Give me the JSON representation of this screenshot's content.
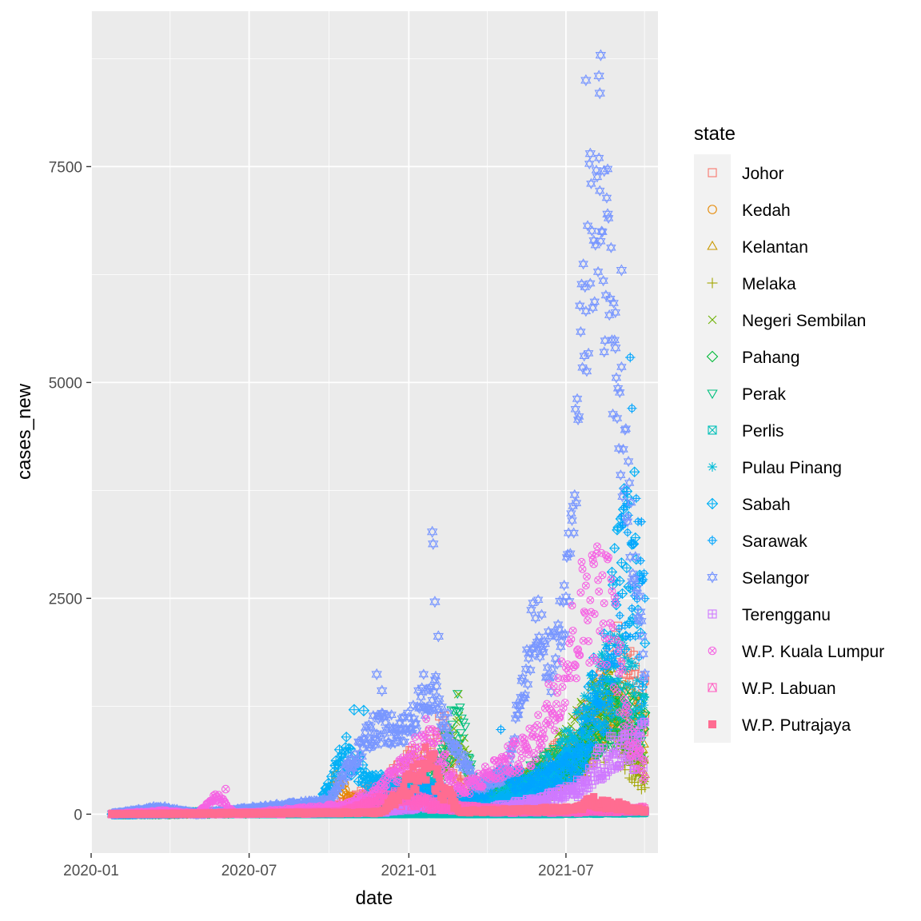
{
  "chart_data": {
    "type": "scatter",
    "title": "",
    "xlabel": "date",
    "ylabel": "cases_new",
    "x_ticks": [
      {
        "label": "2020-01",
        "date": "2020-01-01"
      },
      {
        "label": "2020-07",
        "date": "2020-07-01"
      },
      {
        "label": "2021-01",
        "date": "2021-01-01"
      },
      {
        "label": "2021-07",
        "date": "2021-07-01"
      }
    ],
    "y_ticks": [
      0,
      2500,
      5000,
      7500
    ],
    "xlim": [
      "2020-01-01",
      "2021-10-15"
    ],
    "ylim": [
      -450,
      9300
    ],
    "date_range": [
      "2020-01-25",
      "2021-09-30"
    ],
    "legend": {
      "title": "state",
      "position": "right"
    },
    "series": [
      {
        "name": "Johor",
        "color": "#F8766D",
        "shape": "open-square",
        "profile": [
          [
            "2020-01-25",
            0
          ],
          [
            "2020-09-25",
            30
          ],
          [
            "2020-12-01",
            300
          ],
          [
            "2021-01-20",
            700
          ],
          [
            "2021-02-10",
            950
          ],
          [
            "2021-03-15",
            100
          ],
          [
            "2021-05-15",
            400
          ],
          [
            "2021-07-01",
            700
          ],
          [
            "2021-08-01",
            1100
          ],
          [
            "2021-09-01",
            1700
          ],
          [
            "2021-09-30",
            1200
          ]
        ],
        "noise": 0.35,
        "stride": 1
      },
      {
        "name": "Kedah",
        "color": "#E58700",
        "shape": "open-circle",
        "profile": [
          [
            "2020-01-25",
            0
          ],
          [
            "2020-09-25",
            20
          ],
          [
            "2020-10-10",
            400
          ],
          [
            "2020-11-01",
            120
          ],
          [
            "2021-01-15",
            200
          ],
          [
            "2021-03-15",
            60
          ],
          [
            "2021-06-01",
            300
          ],
          [
            "2021-07-15",
            600
          ],
          [
            "2021-08-25",
            1300
          ],
          [
            "2021-09-30",
            900
          ]
        ],
        "noise": 0.35,
        "stride": 1
      },
      {
        "name": "Kelantan",
        "color": "#C99800",
        "shape": "open-triangle",
        "profile": [
          [
            "2020-01-25",
            0
          ],
          [
            "2020-12-01",
            60
          ],
          [
            "2021-01-25",
            180
          ],
          [
            "2021-03-15",
            50
          ],
          [
            "2021-06-01",
            350
          ],
          [
            "2021-07-15",
            700
          ],
          [
            "2021-08-20",
            1300
          ],
          [
            "2021-09-30",
            600
          ]
        ],
        "noise": 0.35,
        "stride": 1
      },
      {
        "name": "Melaka",
        "color": "#A3A500",
        "shape": "plus",
        "profile": [
          [
            "2020-01-25",
            0
          ],
          [
            "2020-12-01",
            40
          ],
          [
            "2021-01-25",
            150
          ],
          [
            "2021-03-15",
            60
          ],
          [
            "2021-06-01",
            200
          ],
          [
            "2021-07-15",
            500
          ],
          [
            "2021-08-20",
            1000
          ],
          [
            "2021-09-30",
            350
          ]
        ],
        "noise": 0.35,
        "stride": 1
      },
      {
        "name": "Negeri Sembilan",
        "color": "#6BB100",
        "shape": "cross",
        "profile": [
          [
            "2020-01-25",
            0
          ],
          [
            "2020-12-01",
            50
          ],
          [
            "2021-01-25",
            300
          ],
          [
            "2021-03-01",
            900
          ],
          [
            "2021-03-20",
            120
          ],
          [
            "2021-06-01",
            450
          ],
          [
            "2021-07-15",
            1000
          ],
          [
            "2021-08-20",
            1300
          ],
          [
            "2021-09-30",
            500
          ]
        ],
        "noise": 0.35,
        "stride": 1
      },
      {
        "name": "Pahang",
        "color": "#00BA38",
        "shape": "open-diamond",
        "profile": [
          [
            "2020-01-25",
            0
          ],
          [
            "2020-12-01",
            40
          ],
          [
            "2021-01-25",
            150
          ],
          [
            "2021-03-15",
            60
          ],
          [
            "2021-06-01",
            300
          ],
          [
            "2021-07-15",
            700
          ],
          [
            "2021-08-20",
            1200
          ],
          [
            "2021-09-30",
            900
          ]
        ],
        "noise": 0.35,
        "stride": 1
      },
      {
        "name": "Perak",
        "color": "#00BF7D",
        "shape": "open-triangle-down",
        "profile": [
          [
            "2020-01-25",
            0
          ],
          [
            "2020-11-01",
            60
          ],
          [
            "2021-01-25",
            400
          ],
          [
            "2021-03-01",
            1100
          ],
          [
            "2021-03-20",
            150
          ],
          [
            "2021-06-01",
            500
          ],
          [
            "2021-07-15",
            700
          ],
          [
            "2021-08-20",
            1200
          ],
          [
            "2021-09-30",
            1000
          ]
        ],
        "noise": 0.35,
        "stride": 1
      },
      {
        "name": "Perlis",
        "color": "#00C0B8",
        "shape": "square-cross",
        "profile": [
          [
            "2020-01-25",
            0
          ],
          [
            "2021-06-01",
            5
          ],
          [
            "2021-09-30",
            20
          ]
        ],
        "noise": 0.5,
        "stride": 1
      },
      {
        "name": "Pulau Pinang",
        "color": "#00BCD8",
        "shape": "asterisk",
        "profile": [
          [
            "2020-01-25",
            0
          ],
          [
            "2020-10-15",
            30
          ],
          [
            "2020-12-15",
            300
          ],
          [
            "2021-01-25",
            400
          ],
          [
            "2021-03-15",
            100
          ],
          [
            "2021-06-01",
            400
          ],
          [
            "2021-07-15",
            900
          ],
          [
            "2021-08-20",
            1700
          ],
          [
            "2021-09-30",
            1200
          ]
        ],
        "noise": 0.35,
        "stride": 1
      },
      {
        "name": "Sabah",
        "color": "#00B0F6",
        "shape": "diamond-plus",
        "profile": [
          [
            "2020-01-25",
            0
          ],
          [
            "2020-09-15",
            40
          ],
          [
            "2020-10-01",
            300
          ],
          [
            "2020-10-20",
            700
          ],
          [
            "2020-11-15",
            400
          ],
          [
            "2021-01-01",
            250
          ],
          [
            "2021-03-15",
            50
          ],
          [
            "2021-06-01",
            300
          ],
          [
            "2021-07-15",
            700
          ],
          [
            "2021-08-20",
            2000
          ],
          [
            "2021-09-15",
            3300
          ],
          [
            "2021-09-30",
            1500
          ]
        ],
        "noise": 0.35,
        "stride": 1
      },
      {
        "name": "Sarawak",
        "color": "#00A5FF",
        "shape": "circle-plus",
        "profile": [
          [
            "2020-01-25",
            0
          ],
          [
            "2020-12-01",
            30
          ],
          [
            "2021-01-25",
            300
          ],
          [
            "2021-03-01",
            100
          ],
          [
            "2021-04-15",
            400
          ],
          [
            "2021-06-01",
            400
          ],
          [
            "2021-07-15",
            600
          ],
          [
            "2021-08-20",
            1500
          ],
          [
            "2021-09-10",
            3200
          ],
          [
            "2021-09-30",
            2500
          ]
        ],
        "noise": 0.35,
        "stride": 1
      },
      {
        "name": "Selangor",
        "color": "#7997FF",
        "shape": "star6",
        "profile": [
          [
            "2020-01-25",
            0
          ],
          [
            "2020-03-20",
            80
          ],
          [
            "2020-05-01",
            5
          ],
          [
            "2020-10-01",
            150
          ],
          [
            "2020-11-20",
            1000
          ],
          [
            "2021-01-01",
            1000
          ],
          [
            "2021-01-25",
            1500
          ],
          [
            "2021-03-01",
            700
          ],
          [
            "2021-03-20",
            300
          ],
          [
            "2021-04-25",
            500
          ],
          [
            "2021-05-25",
            2200
          ],
          [
            "2021-06-15",
            1700
          ],
          [
            "2021-07-05",
            2800
          ],
          [
            "2021-07-20",
            5600
          ],
          [
            "2021-08-05",
            7000
          ],
          [
            "2021-08-20",
            6200
          ],
          [
            "2021-09-10",
            3500
          ],
          [
            "2021-09-30",
            1600
          ]
        ],
        "noise": 0.2,
        "stride": 1
      },
      {
        "name": "Terengganu",
        "color": "#CF78FF",
        "shape": "square-plus",
        "profile": [
          [
            "2020-01-25",
            0
          ],
          [
            "2020-12-01",
            30
          ],
          [
            "2021-01-25",
            100
          ],
          [
            "2021-03-15",
            40
          ],
          [
            "2021-06-01",
            150
          ],
          [
            "2021-07-15",
            300
          ],
          [
            "2021-08-20",
            700
          ],
          [
            "2021-09-30",
            800
          ]
        ],
        "noise": 0.35,
        "stride": 1
      },
      {
        "name": "W.P. Kuala Lumpur",
        "color": "#F564E3",
        "shape": "circle-cross",
        "profile": [
          [
            "2020-01-25",
            0
          ],
          [
            "2020-03-25",
            40
          ],
          [
            "2020-05-01",
            5
          ],
          [
            "2020-05-25",
            200
          ],
          [
            "2020-06-15",
            5
          ],
          [
            "2020-10-20",
            100
          ],
          [
            "2020-12-01",
            300
          ],
          [
            "2021-01-25",
            900
          ],
          [
            "2021-03-01",
            250
          ],
          [
            "2021-05-25",
            800
          ],
          [
            "2021-07-01",
            1700
          ],
          [
            "2021-07-25",
            2500
          ],
          [
            "2021-08-20",
            2400
          ],
          [
            "2021-09-10",
            1000
          ],
          [
            "2021-09-30",
            500
          ]
        ],
        "noise": 0.3,
        "stride": 1
      },
      {
        "name": "W.P. Labuan",
        "color": "#FF61C3",
        "shape": "square-triangle",
        "profile": [
          [
            "2020-01-25",
            0
          ],
          [
            "2020-10-15",
            20
          ],
          [
            "2020-12-15",
            200
          ],
          [
            "2021-02-01",
            100
          ],
          [
            "2021-05-01",
            30
          ],
          [
            "2021-09-30",
            60
          ]
        ],
        "noise": 0.5,
        "stride": 1
      },
      {
        "name": "W.P. Putrajaya",
        "color": "#FF6C91",
        "shape": "filled-square",
        "profile": [
          [
            "2020-01-25",
            0
          ],
          [
            "2020-12-01",
            20
          ],
          [
            "2021-01-25",
            600
          ],
          [
            "2021-02-10",
            300
          ],
          [
            "2021-03-01",
            30
          ],
          [
            "2021-07-10",
            60
          ],
          [
            "2021-08-01",
            150
          ],
          [
            "2021-09-30",
            40
          ]
        ],
        "noise": 0.45,
        "stride": 1
      }
    ],
    "notable_points": [
      {
        "series": "Selangor",
        "date": "2021-08-10",
        "value": 8790
      },
      {
        "series": "Selangor",
        "date": "2021-07-24",
        "value": 8500
      },
      {
        "series": "Selangor",
        "date": "2021-08-08",
        "value": 8550
      },
      {
        "series": "Selangor",
        "date": "2021-08-09",
        "value": 8350
      },
      {
        "series": "Selangor",
        "date": "2021-07-29",
        "value": 7650
      },
      {
        "series": "Selangor",
        "date": "2021-08-14",
        "value": 7450
      },
      {
        "series": "Selangor",
        "date": "2021-08-18",
        "value": 6950
      },
      {
        "series": "Selangor",
        "date": "2021-09-03",
        "value": 6300
      },
      {
        "series": "Selangor",
        "date": "2021-08-27",
        "value": 5400
      },
      {
        "series": "Selangor",
        "date": "2021-01-28",
        "value": 3270
      },
      {
        "series": "Selangor",
        "date": "2021-01-29",
        "value": 3130
      },
      {
        "series": "Selangor",
        "date": "2021-01-31",
        "value": 2460
      },
      {
        "series": "Selangor",
        "date": "2021-02-04",
        "value": 2060
      },
      {
        "series": "Selangor",
        "date": "2020-11-25",
        "value": 1620
      },
      {
        "series": "Selangor",
        "date": "2020-12-01",
        "value": 1430
      },
      {
        "series": "Sarawak",
        "date": "2021-09-13",
        "value": 5290
      },
      {
        "series": "Sarawak",
        "date": "2021-09-15",
        "value": 4700
      },
      {
        "series": "Sabah",
        "date": "2021-09-09",
        "value": 3740
      },
      {
        "series": "Sabah",
        "date": "2020-10-30",
        "value": 1210
      },
      {
        "series": "Sabah",
        "date": "2020-11-10",
        "value": 1200
      },
      {
        "series": "W.P. Kuala Lumpur",
        "date": "2020-06-04",
        "value": 290
      },
      {
        "series": "W.P. Kuala Lumpur",
        "date": "2021-08-02",
        "value": 2900
      },
      {
        "series": "Negeri Sembilan",
        "date": "2021-02-27",
        "value": 1390
      },
      {
        "series": "Perak",
        "date": "2021-02-25",
        "value": 1200
      },
      {
        "series": "Sarawak",
        "date": "2021-04-17",
        "value": 980
      }
    ]
  }
}
